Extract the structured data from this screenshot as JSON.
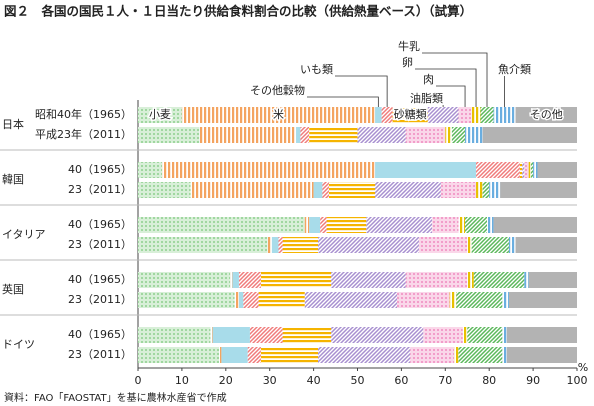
{
  "chart_data": {
    "type": "stacked-bar-horizontal",
    "title": "図２　各国の国民１人・１日当たり供給食料割合の比較（供給熱量ベース）（試算）",
    "source": "資料：FAO「FAOSTAT」を基に農林水産省で作成",
    "x_unit": "%",
    "groups": [
      "日本",
      "韓国",
      "イタリア",
      "英国",
      "ドイツ"
    ],
    "categories": [
      "昭和40年（1965）",
      "平成23年（2011）",
      "40（1965）",
      "23（2011）",
      "40（1965）",
      "23（2011）",
      "40（1965）",
      "23（2011）",
      "40（1965）",
      "23（2011）"
    ],
    "xlim": [
      0,
      100
    ],
    "xticks": [
      0,
      10,
      20,
      30,
      40,
      50,
      60,
      70,
      80,
      90,
      100
    ],
    "series": [
      {
        "name": "小麦",
        "color": "#8fd08f",
        "values": [
          10,
          14,
          5.5,
          12,
          38,
          29.5,
          21,
          22,
          16.5,
          18.5
        ]
      },
      {
        "name": "米",
        "color": "#f4a460",
        "values": [
          44,
          22,
          48.5,
          28,
          1,
          1,
          0.5,
          1,
          0.5,
          0.5
        ]
      },
      {
        "name": "その他穀物",
        "color": "#a8dcea",
        "values": [
          1.5,
          1,
          23,
          2,
          2.5,
          1.5,
          1.5,
          1,
          8.5,
          6
        ]
      },
      {
        "name": "いも類",
        "color": "#f07c7c",
        "values": [
          2.5,
          2,
          10,
          1.5,
          1.5,
          1,
          5,
          3.5,
          7.5,
          3
        ]
      },
      {
        "name": "砂糖類",
        "color": "#f5b400",
        "values": [
          8,
          11,
          0.5,
          10.5,
          9,
          8,
          16,
          10.5,
          11,
          13
        ]
      },
      {
        "name": "油脂類",
        "color": "#a890d0",
        "values": [
          7,
          11,
          0.5,
          15,
          15,
          23,
          17,
          21,
          21,
          21
        ]
      },
      {
        "name": "肉",
        "color": "#f08cc0",
        "values": [
          3,
          9,
          1,
          8,
          6,
          11,
          14,
          12,
          9,
          10
        ]
      },
      {
        "name": "卵",
        "color": "#e8c000",
        "values": [
          2,
          1.5,
          0.5,
          1.5,
          1.5,
          1,
          1.5,
          1.5,
          1,
          1
        ]
      },
      {
        "name": "牛乳",
        "color": "#5cb85c",
        "values": [
          3,
          3,
          0.5,
          1.5,
          5,
          8.5,
          11.5,
          10.5,
          8,
          10
        ]
      },
      {
        "name": "魚介類",
        "color": "#6aaee0",
        "values": [
          5,
          4,
          1,
          2.5,
          1.5,
          1.5,
          1,
          1.5,
          1,
          1
        ]
      },
      {
        "name": "その他",
        "color": "#b3b3b3",
        "values": [
          14,
          21.5,
          9,
          17.5,
          19,
          14,
          11,
          15.5,
          16,
          16
        ]
      }
    ]
  }
}
